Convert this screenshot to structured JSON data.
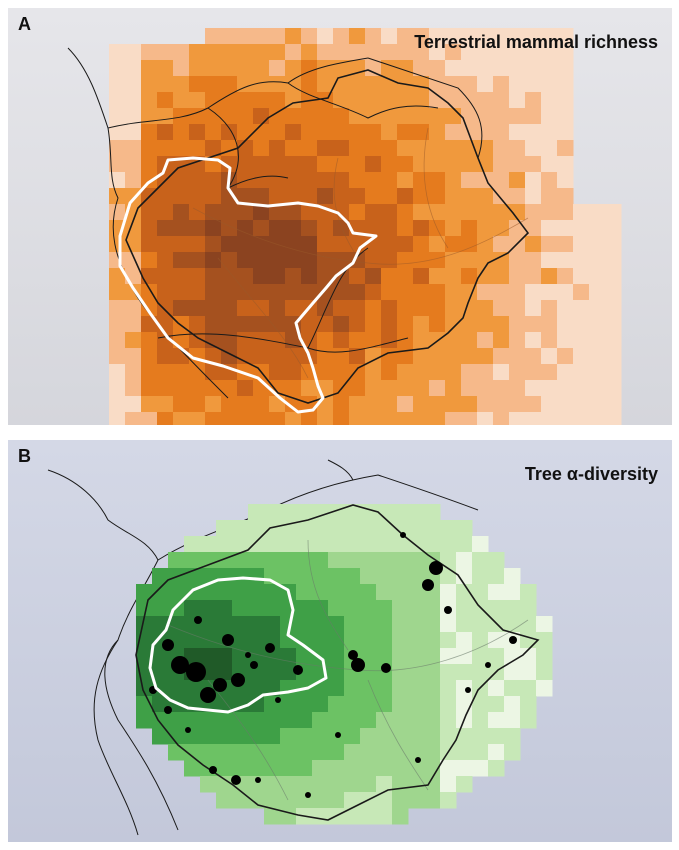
{
  "panels": [
    {
      "letter": "A",
      "title": "Terrestrial mammal richness",
      "palette": [
        "#f9dcc6",
        "#f6b98a",
        "#f0993d",
        "#e57b1e",
        "#c8621b",
        "#a5511f",
        "#8b4320"
      ]
    },
    {
      "letter": "B",
      "title": "Tree α-diversity",
      "palette": [
        "#ecf6e4",
        "#c7e8b7",
        "#9fd68e",
        "#6cc264",
        "#3fa047",
        "#2a7a37",
        "#205a28"
      ]
    }
  ],
  "colors": {
    "outline": "#1a1a1a",
    "highlight": "#ffffff",
    "plot": "#000000",
    "rivers": "#9aa0b6"
  }
}
